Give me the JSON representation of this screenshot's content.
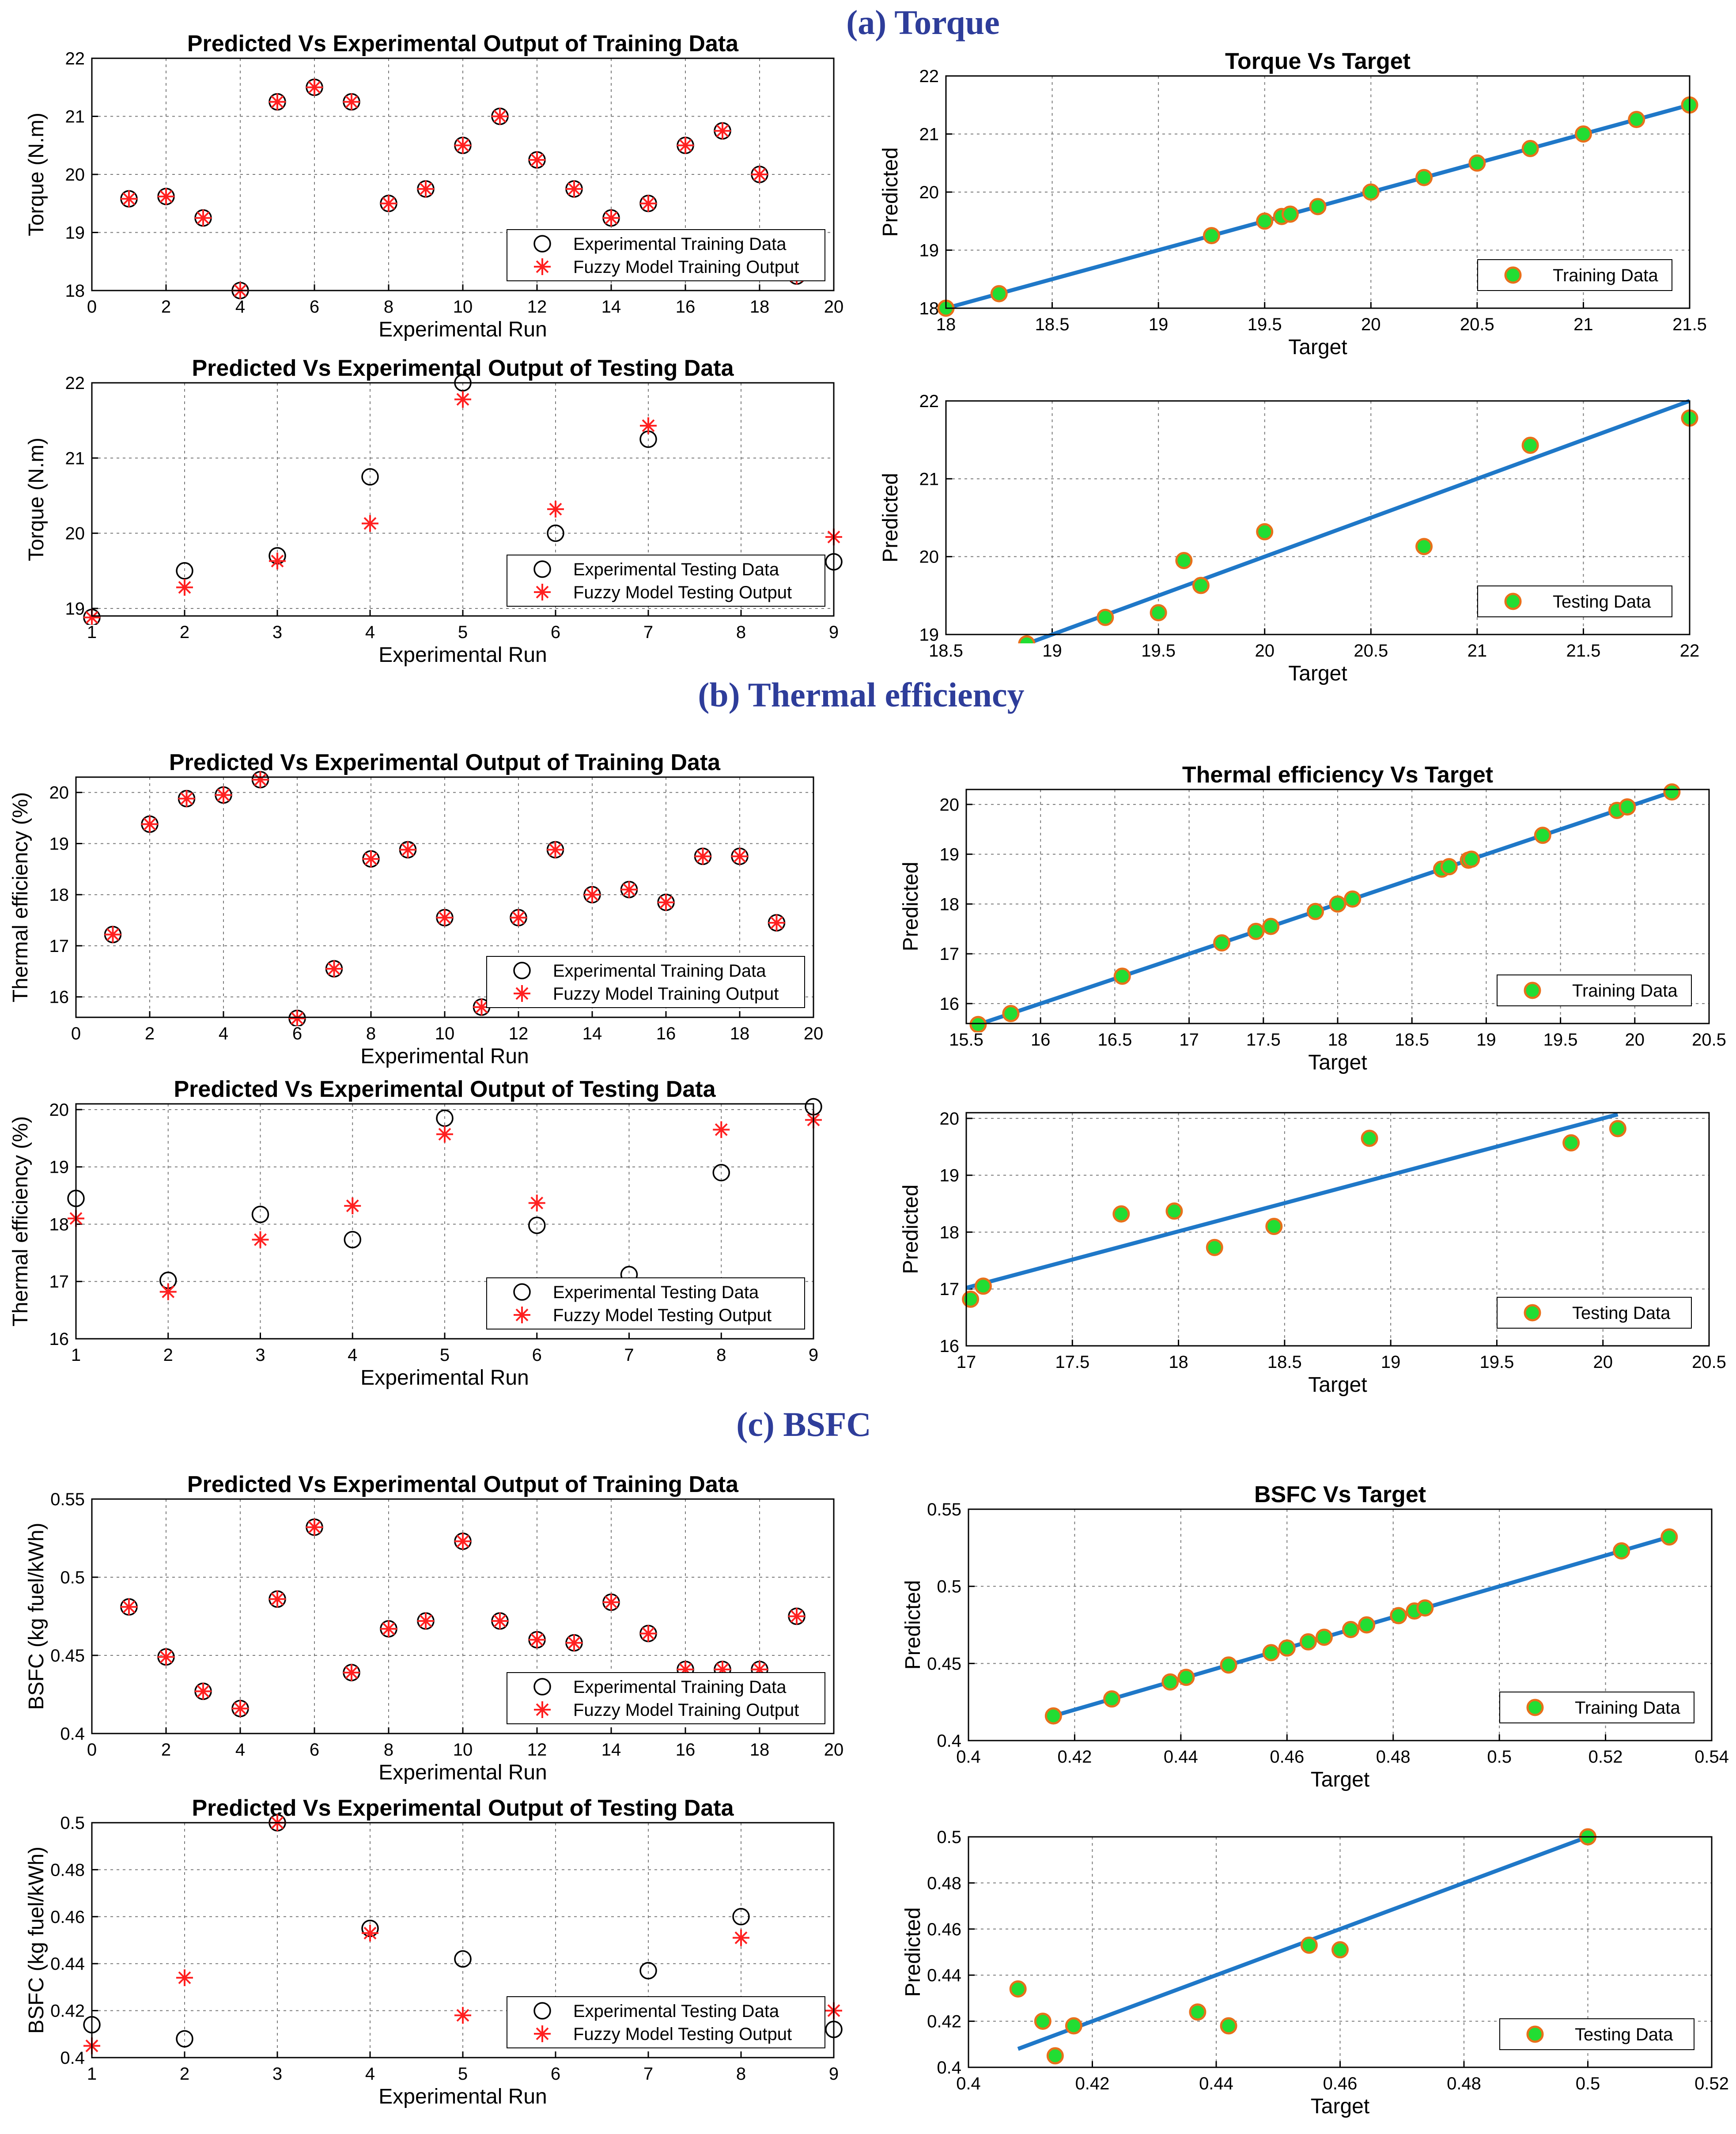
{
  "sections": [
    {
      "title": "(a) Torque"
    },
    {
      "title": "(b) Thermal efficiency"
    },
    {
      "title": "(c) BSFC"
    }
  ],
  "colors": {
    "section_title": "#2e3d9a",
    "marker_fill": "#22dd33",
    "marker_edge": "#e8701a",
    "fit_line": "#1f78c8",
    "star": "#ff2020",
    "circle": "#000000"
  },
  "chart_data": [
    {
      "id": "torque-train-series",
      "type": "scatter",
      "title": "Predicted Vs Experimental Output of Training Data",
      "xlabel": "Experimental Run",
      "ylabel": "Torque (N.m)",
      "xlim": [
        0,
        20
      ],
      "ylim": [
        18,
        22
      ],
      "xticks": [
        "0",
        "2",
        "4",
        "6",
        "8",
        "10",
        "12",
        "14",
        "16",
        "18",
        "20"
      ],
      "yticks": [
        "18",
        "19",
        "20",
        "21",
        "22"
      ],
      "legend": [
        "Experimental Training Data",
        "Fuzzy Model Training Output"
      ],
      "legend_position": "bottom-right",
      "x": [
        1,
        2,
        3,
        4,
        5,
        6,
        7,
        8,
        9,
        10,
        11,
        12,
        13,
        14,
        15,
        16,
        17,
        18,
        19
      ],
      "series": [
        {
          "name": "Experimental Training Data",
          "marker": "circle",
          "values": [
            19.58,
            19.62,
            19.25,
            18.0,
            21.25,
            21.5,
            21.25,
            19.5,
            19.75,
            20.5,
            21.0,
            20.25,
            19.75,
            19.25,
            19.5,
            20.5,
            20.75,
            20.0,
            18.25
          ]
        },
        {
          "name": "Fuzzy Model Training Output",
          "marker": "star",
          "values": [
            19.58,
            19.62,
            19.25,
            18.0,
            21.25,
            21.5,
            21.25,
            19.5,
            19.75,
            20.5,
            21.0,
            20.25,
            19.75,
            19.25,
            19.5,
            20.5,
            20.75,
            20.0,
            18.25
          ]
        }
      ]
    },
    {
      "id": "torque-train-regression",
      "type": "scatter",
      "title": "Torque Vs Target",
      "xlabel": "Target",
      "ylabel": "Predicted",
      "xlim": [
        18,
        21.5
      ],
      "ylim": [
        18,
        22
      ],
      "xticks": [
        "18",
        "18.5",
        "19",
        "19.5",
        "20",
        "20.5",
        "21",
        "21.5"
      ],
      "yticks": [
        "18",
        "19",
        "20",
        "21",
        "22"
      ],
      "legend": [
        "Training Data"
      ],
      "legend_position": "bottom-right",
      "fit_line": [
        [
          18,
          18.0
        ],
        [
          21.5,
          21.5
        ]
      ],
      "x": [
        18.0,
        18.25,
        19.25,
        19.5,
        19.58,
        19.62,
        19.75,
        20.0,
        20.25,
        20.5,
        20.75,
        21.0,
        21.25,
        21.5
      ],
      "y": [
        18.0,
        18.25,
        19.25,
        19.5,
        19.58,
        19.62,
        19.75,
        20.0,
        20.25,
        20.5,
        20.75,
        21.0,
        21.25,
        21.5
      ]
    },
    {
      "id": "torque-test-series",
      "type": "scatter",
      "title": "Predicted Vs Experimental Output of Testing Data",
      "xlabel": "Experimental Run",
      "ylabel": "Torque (N.m)",
      "xlim": [
        1,
        9
      ],
      "ylim": [
        18.9,
        22
      ],
      "xticks": [
        "1",
        "2",
        "3",
        "4",
        "5",
        "6",
        "7",
        "8",
        "9"
      ],
      "yticks": [
        "19",
        "20",
        "21",
        "22"
      ],
      "legend": [
        "Experimental Testing Data",
        "Fuzzy Model Testing Output"
      ],
      "legend_position": "bottom-right",
      "x": [
        1,
        2,
        3,
        4,
        5,
        6,
        7,
        8,
        9
      ],
      "series": [
        {
          "name": "Experimental Testing Data",
          "marker": "circle",
          "values": [
            18.88,
            19.5,
            19.7,
            20.75,
            22.0,
            20.0,
            21.25,
            null,
            19.62
          ]
        },
        {
          "name": "Fuzzy Model Testing Output",
          "marker": "star",
          "values": [
            18.88,
            19.28,
            19.63,
            20.13,
            21.78,
            20.32,
            21.43,
            null,
            19.95
          ]
        }
      ]
    },
    {
      "id": "torque-test-regression",
      "type": "scatter",
      "title": "",
      "xlabel": "Target",
      "ylabel": "Predicted",
      "xlim": [
        18.5,
        22
      ],
      "ylim": [
        19,
        22
      ],
      "xticks": [
        "18.5",
        "19",
        "19.5",
        "20",
        "20.5",
        "21",
        "21.5",
        "22"
      ],
      "yticks": [
        "19",
        "20",
        "21",
        "22"
      ],
      "legend": [
        "Testing Data"
      ],
      "legend_position": "bottom-right",
      "fit_line": [
        [
          18.88,
          18.88
        ],
        [
          22.0,
          22.0
        ]
      ],
      "x": [
        18.88,
        19.25,
        19.5,
        19.62,
        19.7,
        20.0,
        20.75,
        21.25,
        22.0
      ],
      "y": [
        18.88,
        19.22,
        19.28,
        19.95,
        19.63,
        20.32,
        20.13,
        21.43,
        21.78
      ]
    },
    {
      "id": "thermal-train-series",
      "type": "scatter",
      "title": "Predicted Vs Experimental Output of Training Data",
      "xlabel": "Experimental Run",
      "ylabel": "Thermal efficiency (%)",
      "xlim": [
        0,
        20
      ],
      "ylim": [
        15.6,
        20.3
      ],
      "xticks": [
        "0",
        "2",
        "4",
        "6",
        "8",
        "10",
        "12",
        "14",
        "16",
        "18",
        "20"
      ],
      "yticks": [
        "16",
        "17",
        "18",
        "19",
        "20"
      ],
      "legend": [
        "Experimental Training Data",
        "Fuzzy Model Training Output"
      ],
      "legend_position": "bottom-right",
      "x": [
        1,
        2,
        3,
        4,
        5,
        6,
        7,
        8,
        9,
        10,
        11,
        12,
        13,
        14,
        15,
        16,
        17,
        18,
        19
      ],
      "series": [
        {
          "name": "Experimental Training Data",
          "marker": "circle",
          "values": [
            17.22,
            19.38,
            19.88,
            19.95,
            20.25,
            15.58,
            16.55,
            18.7,
            18.88,
            17.55,
            15.8,
            17.55,
            18.88,
            18.0,
            18.1,
            17.85,
            18.75,
            18.75,
            17.45
          ]
        },
        {
          "name": "Fuzzy Model Training Output",
          "marker": "star",
          "values": [
            17.22,
            19.38,
            19.88,
            19.95,
            20.25,
            15.58,
            16.55,
            18.7,
            18.88,
            17.55,
            15.8,
            17.55,
            18.88,
            18.0,
            18.1,
            17.85,
            18.75,
            18.75,
            17.45
          ]
        }
      ]
    },
    {
      "id": "thermal-train-regression",
      "type": "scatter",
      "title": "Thermal efficiency Vs Target",
      "xlabel": "Target",
      "ylabel": "Predicted",
      "xlim": [
        15.5,
        20.5
      ],
      "ylim": [
        15.6,
        20.3
      ],
      "xticks": [
        "15.5",
        "16",
        "16.5",
        "17",
        "17.5",
        "18",
        "18.5",
        "19",
        "19.5",
        "20",
        "20.5"
      ],
      "yticks": [
        "16",
        "17",
        "18",
        "19",
        "20"
      ],
      "legend": [
        "Training Data"
      ],
      "legend_position": "bottom-right",
      "fit_line": [
        [
          15.58,
          15.58
        ],
        [
          20.25,
          20.25
        ]
      ],
      "x": [
        15.58,
        15.8,
        16.55,
        17.22,
        17.45,
        17.55,
        17.85,
        18.0,
        18.1,
        18.7,
        18.75,
        18.88,
        18.9,
        19.38,
        19.88,
        19.95,
        20.25
      ],
      "y": [
        15.58,
        15.8,
        16.55,
        17.22,
        17.45,
        17.55,
        17.85,
        18.0,
        18.1,
        18.7,
        18.75,
        18.88,
        18.9,
        19.38,
        19.88,
        19.95,
        20.25
      ]
    },
    {
      "id": "thermal-test-series",
      "type": "scatter",
      "title": "Predicted Vs Experimental Output of Testing Data",
      "xlabel": "Experimental Run",
      "ylabel": "Thermal efficiency (%)",
      "xlim": [
        1,
        9
      ],
      "ylim": [
        16,
        20.1
      ],
      "xticks": [
        "1",
        "2",
        "3",
        "4",
        "5",
        "6",
        "7",
        "8",
        "9"
      ],
      "yticks": [
        "16",
        "17",
        "18",
        "19",
        "20"
      ],
      "legend": [
        "Experimental Testing Data",
        "Fuzzy Model Testing Output"
      ],
      "legend_position": "bottom-right",
      "x": [
        1,
        2,
        3,
        4,
        5,
        6,
        7,
        8,
        9
      ],
      "series": [
        {
          "name": "Experimental Testing Data",
          "marker": "circle",
          "values": [
            18.45,
            17.02,
            18.17,
            17.73,
            19.85,
            17.98,
            17.12,
            18.9,
            20.05
          ]
        },
        {
          "name": "Fuzzy Model Testing Output",
          "marker": "star",
          "values": [
            18.1,
            16.82,
            17.73,
            18.32,
            19.57,
            18.37,
            null,
            19.65,
            19.82
          ]
        }
      ]
    },
    {
      "id": "thermal-test-regression",
      "type": "scatter",
      "title": "",
      "xlabel": "Target",
      "ylabel": "Predicted",
      "xlim": [
        17,
        20.5
      ],
      "ylim": [
        16,
        20.1
      ],
      "xticks": [
        "17",
        "17.5",
        "18",
        "18.5",
        "19",
        "19.5",
        "20",
        "20.5"
      ],
      "yticks": [
        "16",
        "17",
        "18",
        "19",
        "20"
      ],
      "legend": [
        "Testing Data"
      ],
      "legend_position": "bottom-right",
      "fit_line": [
        [
          17.0,
          17.02
        ],
        [
          20.07,
          20.07
        ]
      ],
      "x": [
        17.02,
        17.08,
        17.73,
        17.98,
        18.17,
        18.45,
        18.9,
        19.85,
        20.07
      ],
      "y": [
        16.82,
        17.05,
        18.32,
        18.37,
        17.73,
        18.1,
        19.65,
        19.57,
        19.82
      ]
    },
    {
      "id": "bsfc-train-series",
      "type": "scatter",
      "title": "Predicted Vs Experimental Output of Training Data",
      "xlabel": "Experimental Run",
      "ylabel": "BSFC (kg fuel/kWh)",
      "xlim": [
        0,
        20
      ],
      "ylim": [
        0.4,
        0.55
      ],
      "xticks": [
        "0",
        "2",
        "4",
        "6",
        "8",
        "10",
        "12",
        "14",
        "16",
        "18",
        "20"
      ],
      "yticks": [
        "0.4",
        "0.45",
        "0.5",
        "0.55"
      ],
      "legend": [
        "Experimental Training Data",
        "Fuzzy Model Training Output"
      ],
      "legend_position": "bottom-right",
      "x": [
        1,
        2,
        3,
        4,
        5,
        6,
        7,
        8,
        9,
        10,
        11,
        12,
        13,
        14,
        15,
        16,
        17,
        18,
        19
      ],
      "series": [
        {
          "name": "Experimental Training Data",
          "marker": "circle",
          "values": [
            0.481,
            0.449,
            0.427,
            0.416,
            0.486,
            0.532,
            0.439,
            0.467,
            0.472,
            0.523,
            0.472,
            0.46,
            0.458,
            0.484,
            0.464,
            0.441,
            0.441,
            0.441,
            0.475
          ]
        },
        {
          "name": "Fuzzy Model Training Output",
          "marker": "star",
          "values": [
            0.481,
            0.449,
            0.427,
            0.416,
            0.486,
            0.532,
            0.439,
            0.467,
            0.472,
            0.523,
            0.472,
            0.46,
            0.458,
            0.484,
            0.464,
            0.441,
            0.441,
            0.441,
            0.475
          ]
        }
      ]
    },
    {
      "id": "bsfc-train-regression",
      "type": "scatter",
      "title": "BSFC Vs Target",
      "xlabel": "Target",
      "ylabel": "Predicted",
      "xlim": [
        0.4,
        0.54
      ],
      "ylim": [
        0.4,
        0.55
      ],
      "xticks": [
        "0.4",
        "0.42",
        "0.44",
        "0.46",
        "0.48",
        "0.5",
        "0.52",
        "0.54"
      ],
      "yticks": [
        "0.4",
        "0.45",
        "0.5",
        "0.55"
      ],
      "legend": [
        "Training Data"
      ],
      "legend_position": "bottom-right",
      "fit_line": [
        [
          0.416,
          0.416
        ],
        [
          0.532,
          0.532
        ]
      ],
      "x": [
        0.416,
        0.427,
        0.438,
        0.441,
        0.449,
        0.457,
        0.46,
        0.464,
        0.467,
        0.472,
        0.475,
        0.481,
        0.484,
        0.486,
        0.523,
        0.532
      ],
      "y": [
        0.416,
        0.427,
        0.438,
        0.441,
        0.449,
        0.457,
        0.46,
        0.464,
        0.467,
        0.472,
        0.475,
        0.481,
        0.484,
        0.486,
        0.523,
        0.532
      ]
    },
    {
      "id": "bsfc-test-series",
      "type": "scatter",
      "title": "Predicted Vs Experimental Output of Testing Data",
      "xlabel": "Experimental Run",
      "ylabel": "BSFC (kg fuel/kWh)",
      "xlim": [
        1,
        9
      ],
      "ylim": [
        0.4,
        0.5
      ],
      "xticks": [
        "1",
        "2",
        "3",
        "4",
        "5",
        "6",
        "7",
        "8",
        "9"
      ],
      "yticks": [
        "0.4",
        "0.42",
        "0.44",
        "0.46",
        "0.48",
        "0.5"
      ],
      "legend": [
        "Experimental Testing Data",
        "Fuzzy Model Testing Output"
      ],
      "legend_position": "bottom-right",
      "x": [
        1,
        2,
        3,
        4,
        5,
        6,
        7,
        8,
        9
      ],
      "series": [
        {
          "name": "Experimental Testing Data",
          "marker": "circle",
          "values": [
            0.414,
            0.408,
            0.5,
            0.455,
            0.442,
            null,
            0.437,
            0.46,
            0.412
          ]
        },
        {
          "name": "Fuzzy Model Testing Output",
          "marker": "star",
          "values": [
            0.405,
            0.434,
            0.5,
            0.453,
            0.418,
            null,
            null,
            0.451,
            0.42
          ]
        }
      ]
    },
    {
      "id": "bsfc-test-regression",
      "type": "scatter",
      "title": "",
      "xlabel": "Target",
      "ylabel": "Predicted",
      "xlim": [
        0.4,
        0.52
      ],
      "ylim": [
        0.4,
        0.5
      ],
      "xticks": [
        "0.4",
        "0.42",
        "0.44",
        "0.46",
        "0.48",
        "0.5",
        "0.52"
      ],
      "yticks": [
        "0.4",
        "0.42",
        "0.44",
        "0.46",
        "0.48",
        "0.5"
      ],
      "legend": [
        "Testing Data"
      ],
      "legend_position": "bottom-right",
      "fit_line": [
        [
          0.408,
          0.408
        ],
        [
          0.5,
          0.5
        ]
      ],
      "x": [
        0.408,
        0.412,
        0.414,
        0.417,
        0.437,
        0.442,
        0.455,
        0.46,
        0.5
      ],
      "y": [
        0.434,
        0.42,
        0.405,
        0.418,
        0.424,
        0.418,
        0.453,
        0.451,
        0.5
      ]
    }
  ]
}
